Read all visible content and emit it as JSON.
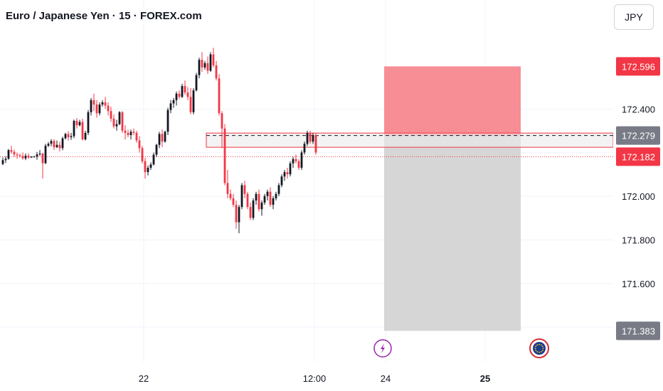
{
  "header": {
    "title": "Euro / Japanese Yen · 15 · FOREX.com",
    "currency": "JPY"
  },
  "chart_data": {
    "type": "candlestick",
    "title": "Euro / Japanese Yen · 15 · FOREX.com",
    "ylim": [
      171.27,
      172.77
    ],
    "y_ticks": [
      "172.400",
      "172.000",
      "171.800",
      "171.600"
    ],
    "x_ticks": [
      {
        "label": "22",
        "bar": 50
      },
      {
        "label": "12:00",
        "bar": 110
      },
      {
        "label": "24",
        "bar": 135
      },
      {
        "label": "25",
        "bar": 170
      }
    ],
    "price_tags": [
      {
        "price": 172.596,
        "label": "172.596",
        "color": "#f23645"
      },
      {
        "price": 172.279,
        "label": "172.279",
        "color": "#787b86"
      },
      {
        "price": 172.182,
        "label": "172.182",
        "color": "#f23645"
      },
      {
        "price": 171.383,
        "label": "171.383",
        "color": "#787b86"
      }
    ],
    "position": {
      "side": "short",
      "entry": 172.279,
      "stop": 172.596,
      "target": 171.383,
      "start_bar": 134.5,
      "end_bar": 182.5,
      "stop_fill": "#f7888f",
      "target_fill": "#d4d4d4"
    },
    "zone": {
      "top": 172.29,
      "bottom": 172.225,
      "start_bar": 72,
      "fill": "#ebebeb",
      "border": "#f23645"
    },
    "current_price_line": 172.182,
    "events": [
      {
        "bar": 134,
        "name": "flash-event-icon",
        "color": "#9c27b0"
      },
      {
        "bar": 189,
        "name": "eu-flag-event-icon",
        "color": "#d32f2f"
      }
    ],
    "ohlc": [
      [
        172.148,
        172.178,
        172.143,
        172.166
      ],
      [
        172.166,
        172.183,
        172.153,
        172.172
      ],
      [
        172.172,
        172.217,
        172.168,
        172.212
      ],
      [
        172.212,
        172.232,
        172.196,
        172.204
      ],
      [
        172.204,
        172.214,
        172.182,
        172.192
      ],
      [
        172.192,
        172.201,
        172.172,
        172.188
      ],
      [
        172.188,
        172.196,
        172.178,
        172.184
      ],
      [
        172.184,
        172.201,
        172.168,
        172.174
      ],
      [
        172.174,
        172.196,
        172.166,
        172.186
      ],
      [
        172.186,
        172.196,
        172.172,
        172.178
      ],
      [
        172.178,
        172.184,
        172.176,
        172.182
      ],
      [
        172.182,
        172.186,
        172.178,
        172.182
      ],
      [
        172.182,
        172.204,
        172.168,
        172.192
      ],
      [
        172.192,
        172.212,
        172.186,
        172.196
      ],
      [
        172.196,
        172.199,
        172.082,
        172.152
      ],
      [
        172.152,
        172.241,
        172.148,
        172.232
      ],
      [
        172.232,
        172.249,
        172.226,
        172.241
      ],
      [
        172.241,
        172.262,
        172.229,
        172.254
      ],
      [
        172.254,
        172.262,
        172.212,
        172.225
      ],
      [
        172.225,
        172.256,
        172.221,
        172.236
      ],
      [
        172.236,
        172.251,
        172.206,
        172.221
      ],
      [
        172.221,
        172.273,
        172.211,
        172.266
      ],
      [
        172.266,
        172.291,
        172.261,
        172.286
      ],
      [
        172.286,
        172.299,
        172.256,
        172.271
      ],
      [
        172.271,
        172.291,
        172.259,
        172.276
      ],
      [
        172.276,
        172.352,
        172.266,
        172.346
      ],
      [
        172.346,
        172.359,
        172.311,
        172.326
      ],
      [
        172.326,
        172.351,
        172.321,
        172.341
      ],
      [
        172.341,
        172.356,
        172.256,
        172.261
      ],
      [
        172.261,
        172.301,
        172.256,
        172.291
      ],
      [
        172.291,
        172.396,
        172.281,
        172.386
      ],
      [
        172.386,
        172.451,
        172.371,
        172.441
      ],
      [
        172.441,
        172.471,
        172.391,
        172.421
      ],
      [
        172.421,
        172.441,
        172.361,
        172.381
      ],
      [
        172.381,
        172.431,
        172.371,
        172.421
      ],
      [
        172.421,
        172.441,
        172.411,
        172.431
      ],
      [
        172.431,
        172.456,
        172.401,
        172.416
      ],
      [
        172.416,
        172.431,
        172.371,
        172.391
      ],
      [
        172.391,
        172.411,
        172.341,
        172.356
      ],
      [
        172.356,
        172.376,
        172.311,
        172.321
      ],
      [
        172.321,
        172.351,
        172.301,
        172.331
      ],
      [
        172.331,
        172.391,
        172.326,
        172.386
      ],
      [
        172.386,
        172.391,
        172.291,
        172.301
      ],
      [
        172.301,
        172.326,
        172.261,
        172.291
      ],
      [
        172.291,
        172.306,
        172.271,
        172.281
      ],
      [
        172.281,
        172.306,
        172.261,
        172.296
      ],
      [
        172.296,
        172.311,
        172.281,
        172.291
      ],
      [
        172.291,
        172.301,
        172.246,
        172.256
      ],
      [
        172.256,
        172.276,
        172.201,
        172.221
      ],
      [
        172.221,
        172.231,
        172.151,
        172.161
      ],
      [
        172.161,
        172.176,
        172.081,
        172.111
      ],
      [
        172.111,
        172.141,
        172.096,
        172.131
      ],
      [
        172.131,
        172.156,
        172.121,
        172.146
      ],
      [
        172.146,
        172.201,
        172.141,
        172.191
      ],
      [
        172.191,
        172.241,
        172.181,
        172.236
      ],
      [
        172.236,
        172.296,
        172.221,
        172.286
      ],
      [
        172.286,
        172.306,
        172.226,
        172.251
      ],
      [
        172.251,
        172.301,
        172.246,
        172.296
      ],
      [
        172.296,
        172.406,
        172.281,
        172.396
      ],
      [
        172.396,
        172.441,
        172.381,
        172.426
      ],
      [
        172.426,
        172.451,
        172.406,
        172.441
      ],
      [
        172.441,
        172.481,
        172.416,
        172.471
      ],
      [
        172.471,
        172.486,
        172.446,
        172.456
      ],
      [
        172.456,
        172.516,
        172.451,
        172.506
      ],
      [
        172.506,
        172.531,
        172.466,
        172.476
      ],
      [
        172.476,
        172.501,
        172.441,
        172.456
      ],
      [
        172.456,
        172.496,
        172.376,
        172.386
      ],
      [
        172.386,
        172.496,
        172.376,
        172.486
      ],
      [
        172.486,
        172.566,
        172.481,
        172.556
      ],
      [
        172.556,
        172.636,
        172.541,
        172.626
      ],
      [
        172.626,
        172.661,
        172.571,
        172.591
      ],
      [
        172.591,
        172.621,
        172.581,
        172.611
      ],
      [
        172.611,
        172.641,
        172.561,
        172.576
      ],
      [
        172.576,
        172.661,
        172.571,
        172.651
      ],
      [
        172.651,
        172.681,
        172.591,
        172.601
      ],
      [
        172.601,
        172.621,
        172.531,
        172.541
      ],
      [
        172.541,
        172.561,
        172.371,
        172.381
      ],
      [
        172.381,
        172.391,
        172.221,
        172.311
      ],
      [
        172.311,
        172.331,
        172.051,
        172.061
      ],
      [
        172.061,
        172.121,
        171.991,
        172.011
      ],
      [
        172.011,
        172.031,
        171.981,
        171.991
      ],
      [
        171.991,
        172.011,
        171.951,
        171.961
      ],
      [
        171.961,
        171.981,
        171.851,
        171.881
      ],
      [
        171.881,
        171.961,
        171.831,
        171.951
      ],
      [
        171.951,
        172.061,
        171.941,
        172.051
      ],
      [
        172.051,
        172.071,
        171.991,
        172.011
      ],
      [
        172.011,
        172.021,
        171.941,
        171.951
      ],
      [
        171.951,
        171.971,
        171.891,
        171.901
      ],
      [
        171.901,
        171.991,
        171.891,
        171.981
      ],
      [
        171.981,
        172.021,
        171.961,
        172.011
      ],
      [
        172.011,
        172.031,
        171.931,
        171.941
      ],
      [
        171.941,
        171.981,
        171.911,
        171.971
      ],
      [
        171.971,
        172.011,
        171.961,
        172.001
      ],
      [
        172.001,
        172.031,
        171.981,
        172.021
      ],
      [
        172.021,
        172.041,
        171.951,
        171.961
      ],
      [
        171.961,
        172.001,
        171.941,
        171.991
      ],
      [
        171.991,
        172.021,
        171.981,
        172.011
      ],
      [
        172.011,
        172.061,
        172.001,
        172.051
      ],
      [
        172.051,
        172.101,
        172.041,
        172.091
      ],
      [
        172.091,
        172.121,
        172.071,
        172.111
      ],
      [
        172.111,
        172.131,
        172.081,
        172.101
      ],
      [
        172.101,
        172.161,
        172.091,
        172.151
      ],
      [
        172.151,
        172.181,
        172.131,
        172.171
      ],
      [
        172.171,
        172.191,
        172.151,
        172.161
      ],
      [
        172.161,
        172.171,
        172.121,
        172.131
      ],
      [
        172.131,
        172.211,
        172.121,
        172.201
      ],
      [
        172.201,
        172.251,
        172.191,
        172.241
      ],
      [
        172.241,
        172.301,
        172.231,
        172.291
      ],
      [
        172.291,
        172.301,
        172.241,
        172.251
      ],
      [
        172.251,
        172.291,
        172.241,
        172.281
      ],
      [
        172.281,
        172.291,
        172.191,
        172.201
      ]
    ]
  }
}
